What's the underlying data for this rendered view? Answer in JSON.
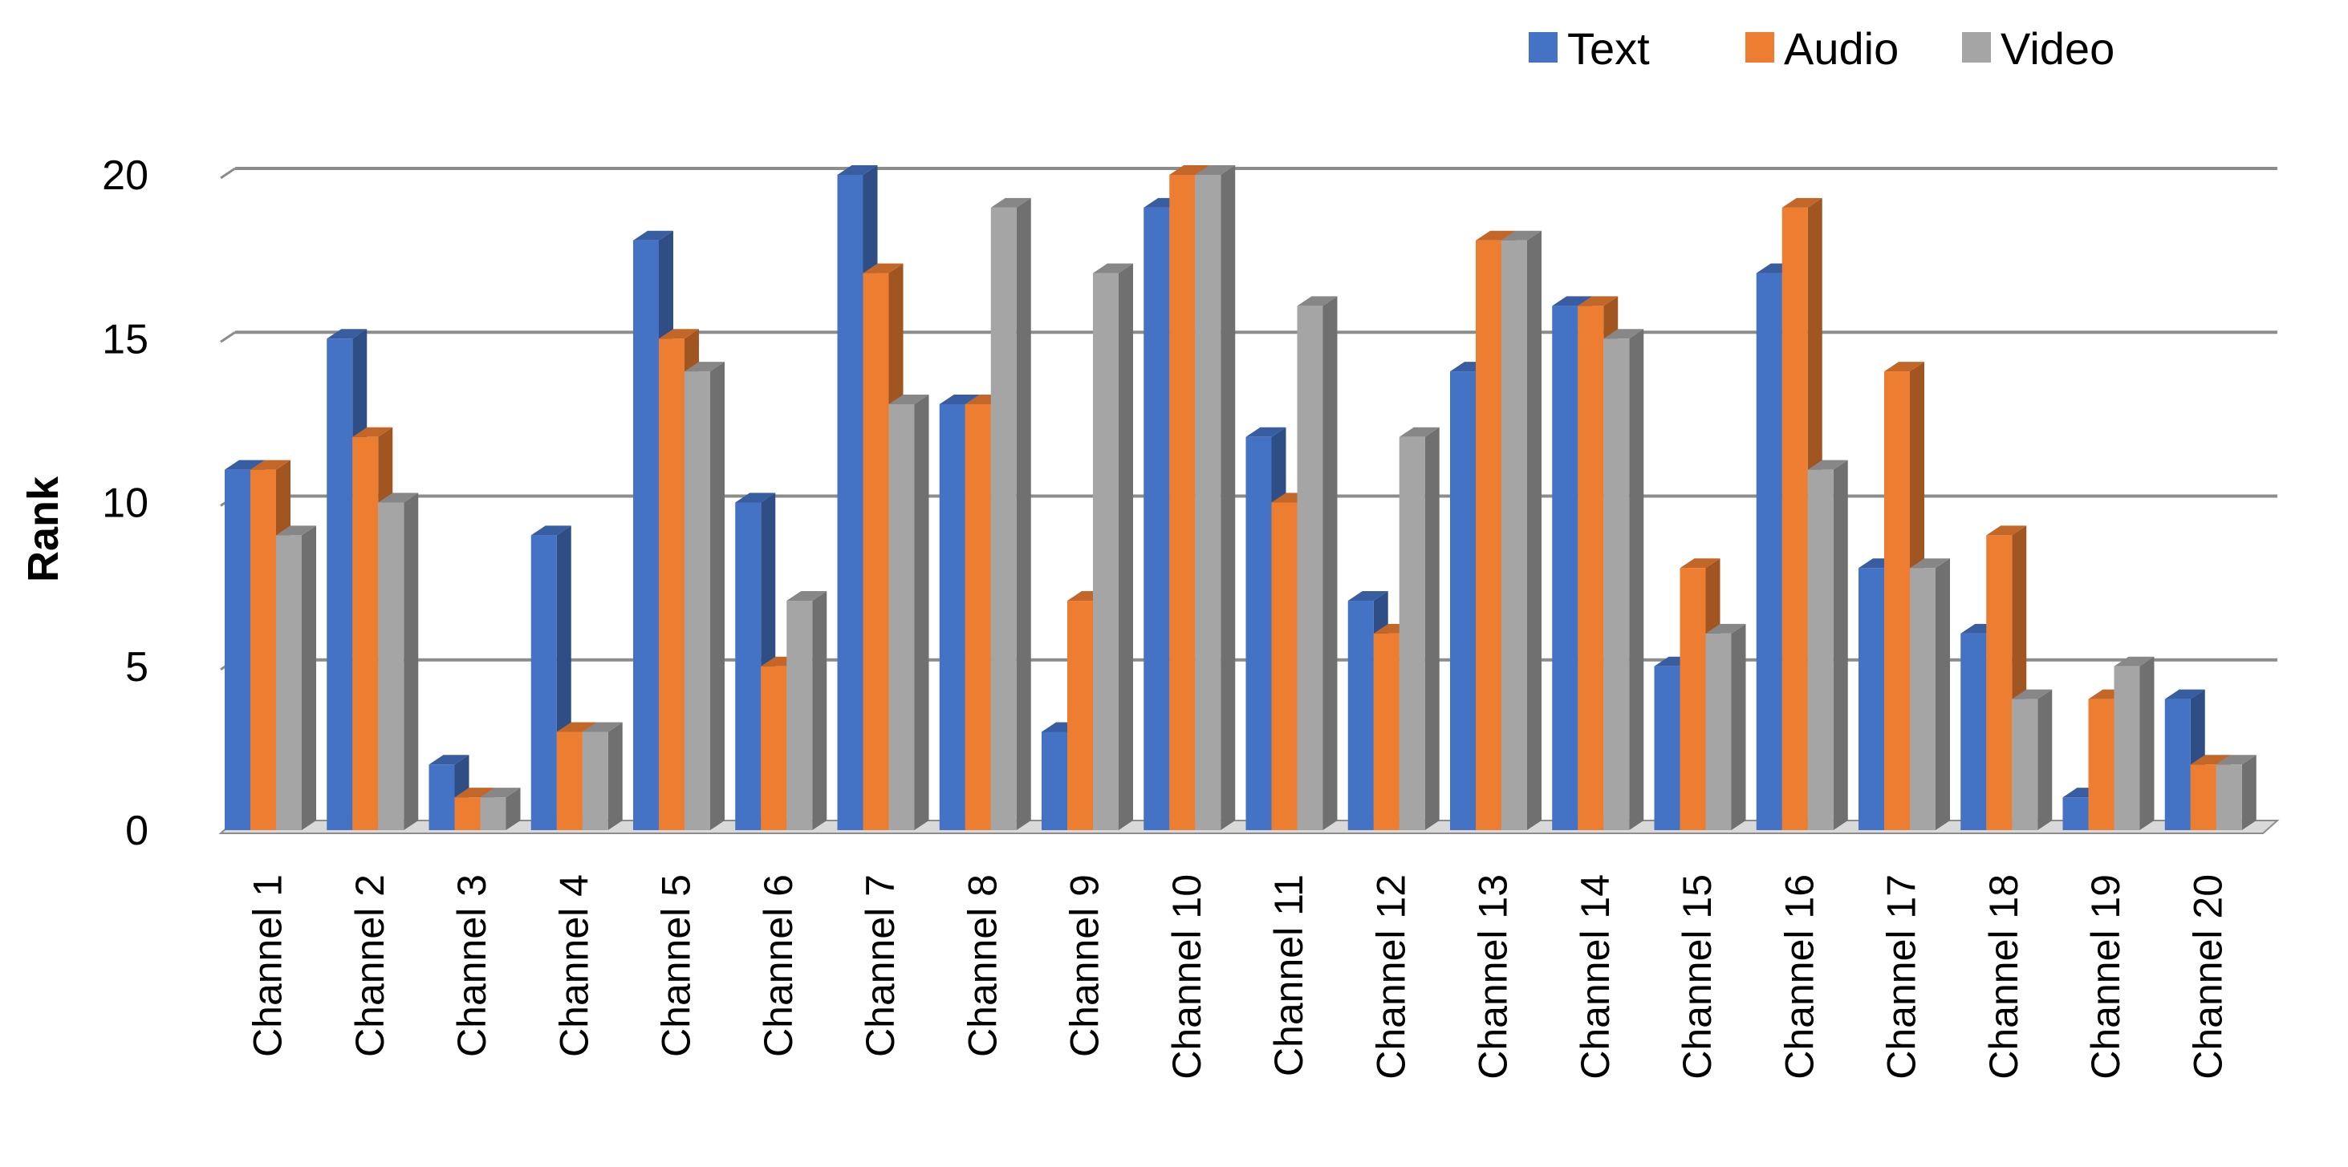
{
  "chart_data": {
    "type": "bar",
    "categories": [
      "Channel 1",
      "Channel 2",
      "Channel 3",
      "Channel 4",
      "Channel 5",
      "Channel 6",
      "Channel 7",
      "Channel 8",
      "Channel 9",
      "Channel 10",
      "Channel 11",
      "Channel 12",
      "Channel 13",
      "Channel 14",
      "Channel 15",
      "Channel 16",
      "Channel 17",
      "Channel 18",
      "Channel 19",
      "Channel 20"
    ],
    "series": [
      {
        "name": "Text",
        "color": "#4472C4",
        "values": [
          11,
          15,
          2,
          9,
          18,
          10,
          20,
          13,
          3,
          19,
          12,
          7,
          14,
          16,
          5,
          17,
          8,
          6,
          1,
          4
        ]
      },
      {
        "name": "Audio",
        "color": "#ED7D31",
        "values": [
          11,
          12,
          1,
          3,
          15,
          5,
          17,
          13,
          7,
          20,
          10,
          6,
          18,
          16,
          8,
          19,
          14,
          9,
          4,
          2
        ]
      },
      {
        "name": "Video",
        "color": "#A5A5A5",
        "values": [
          9,
          10,
          1,
          3,
          14,
          7,
          13,
          19,
          17,
          20,
          16,
          12,
          18,
          15,
          6,
          11,
          8,
          4,
          5,
          2
        ]
      }
    ],
    "title": "",
    "xlabel": "",
    "ylabel": "Rank",
    "ylim": [
      0,
      20
    ],
    "yticks": [
      0,
      5,
      10,
      15,
      20
    ],
    "grid": true,
    "legend_position": "top-right",
    "style": "3d-clustered-column"
  }
}
